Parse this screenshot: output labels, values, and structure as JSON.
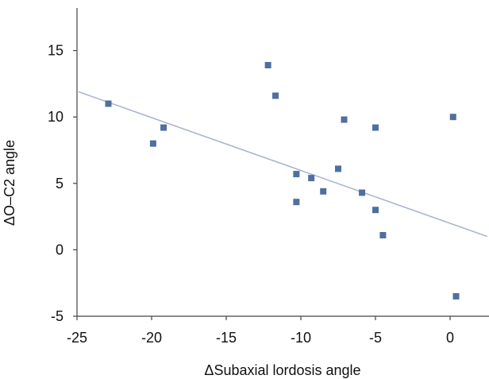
{
  "chart_data": {
    "type": "scatter",
    "title": "",
    "xlabel": "ΔSubaxial lordosis angle",
    "ylabel": "ΔO–C2 angle",
    "xlim": [
      -25,
      2.5
    ],
    "ylim": [
      -5,
      18
    ],
    "x_ticks": [
      -25,
      -20,
      -15,
      -10,
      -5,
      0
    ],
    "y_ticks": [
      -5,
      0,
      5,
      10,
      15
    ],
    "x_tick_labels": [
      "-25",
      "-20",
      "-15",
      "-10",
      "-5",
      "0"
    ],
    "y_tick_labels": [
      "-5",
      "0",
      "5",
      "10",
      "15"
    ],
    "grid": false,
    "legend": "none",
    "marker_color": "#4f6fa0",
    "trendline_color": "#a3b3cc",
    "axis_color": "#444444",
    "series": [
      {
        "points": [
          {
            "x": -22.9,
            "y": 11.0
          },
          {
            "x": -19.9,
            "y": 8.0
          },
          {
            "x": -19.2,
            "y": 9.2
          },
          {
            "x": -12.2,
            "y": 13.9
          },
          {
            "x": -11.7,
            "y": 11.6
          },
          {
            "x": -10.3,
            "y": 5.7
          },
          {
            "x": -10.3,
            "y": 3.6
          },
          {
            "x": -9.3,
            "y": 5.4
          },
          {
            "x": -8.5,
            "y": 4.4
          },
          {
            "x": -7.5,
            "y": 6.1
          },
          {
            "x": -7.1,
            "y": 9.8
          },
          {
            "x": -5.9,
            "y": 4.3
          },
          {
            "x": -5.0,
            "y": 9.2
          },
          {
            "x": -5.0,
            "y": 3.0
          },
          {
            "x": -4.5,
            "y": 1.1
          },
          {
            "x": 0.2,
            "y": 10.0
          },
          {
            "x": 0.4,
            "y": -3.5
          }
        ]
      }
    ],
    "trendline": {
      "x": [
        -24.9,
        2.5
      ],
      "y": [
        11.9,
        1.0
      ]
    }
  }
}
